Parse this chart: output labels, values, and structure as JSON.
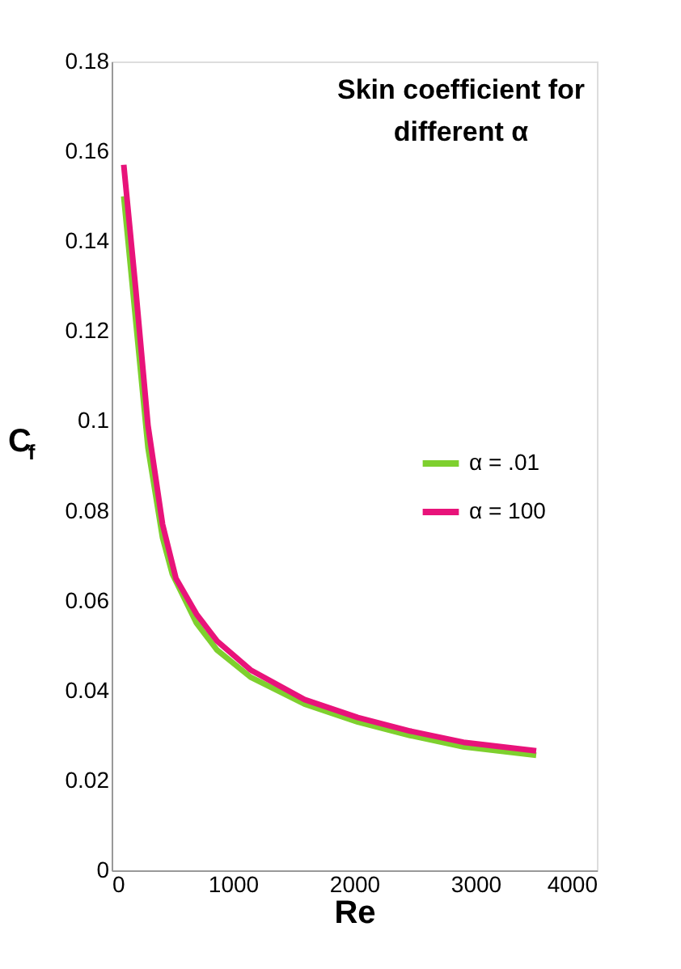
{
  "chart_data": {
    "type": "line",
    "title": "Skin coefficient for\ndifferent  α",
    "xlabel": "Re",
    "ylabel": "C$_{f}$",
    "xlim": [
      0,
      4000
    ],
    "xticks": [
      0,
      1000,
      2000,
      3000,
      4000
    ],
    "ylim": [
      0,
      0.18
    ],
    "yticks": [
      0,
      0.02,
      0.04,
      0.06,
      0.08,
      0.1,
      0.12,
      0.14,
      0.16,
      0.18
    ],
    "grid": false,
    "legend": "right",
    "line_style": "solid",
    "marker": "none",
    "series": [
      {
        "name": "α = .01",
        "color": "#7ed02e",
        "x": [
          100,
          200,
          300,
          420,
          500,
          700,
          870,
          1145,
          1590,
          2030,
          2460,
          2900,
          3500
        ],
        "values": [
          0.15,
          0.122,
          0.094,
          0.074,
          0.066,
          0.055,
          0.049,
          0.043,
          0.037,
          0.033,
          0.03,
          0.0275,
          0.0256
        ]
      },
      {
        "name": "α = 100",
        "color": "#e8137a",
        "x": [
          100,
          200,
          300,
          420,
          530,
          700,
          870,
          1145,
          1590,
          2030,
          2460,
          2900,
          3500
        ],
        "values": [
          0.157,
          0.129,
          0.099,
          0.077,
          0.065,
          0.057,
          0.051,
          0.0446,
          0.038,
          0.034,
          0.031,
          0.0285,
          0.0266
        ]
      }
    ]
  }
}
